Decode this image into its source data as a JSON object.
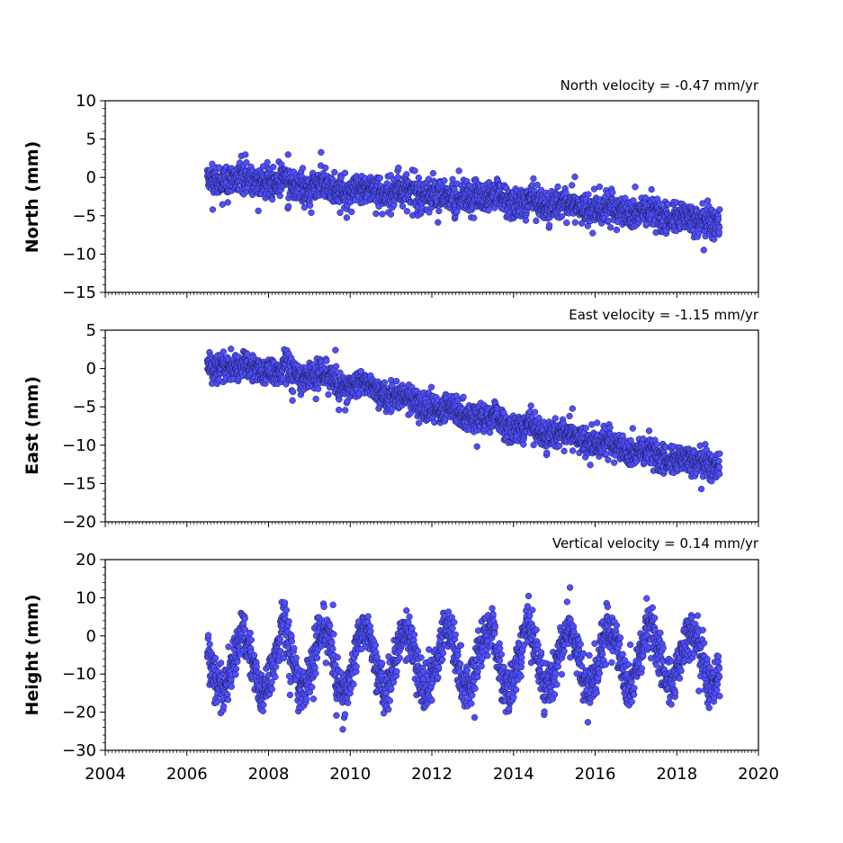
{
  "chart_data": [
    {
      "type": "scatter",
      "title": "North velocity = -0.47 mm/yr",
      "ylabel": "North (mm)",
      "xlim": [
        2004,
        2020
      ],
      "ylim": [
        -15,
        10
      ],
      "yticks": [
        10,
        5,
        0,
        -5,
        -10,
        -15
      ],
      "series": [
        {
          "start": 2006.5,
          "end": 2019.05,
          "trend": [
            [
              2006.5,
              0.0
            ],
            [
              2010.0,
              -1.6
            ],
            [
              2013.0,
              -2.6
            ],
            [
              2016.0,
              -4.0
            ],
            [
              2019.0,
              -5.8
            ]
          ],
          "scatter_sd": 1.3,
          "seasonal_amp": 0.3
        }
      ]
    },
    {
      "type": "scatter",
      "title": "East velocity = -1.15 mm/yr",
      "ylabel": "East (mm)",
      "xlim": [
        2004,
        2020
      ],
      "ylim": [
        -20,
        5
      ],
      "yticks": [
        5,
        0,
        -5,
        -10,
        -15,
        -20
      ],
      "series": [
        {
          "start": 2006.5,
          "end": 2019.05,
          "trend": [
            [
              2006.5,
              0.5
            ],
            [
              2008.0,
              0.0
            ],
            [
              2010.0,
              -2.0
            ],
            [
              2012.0,
              -5.0
            ],
            [
              2014.0,
              -7.5
            ],
            [
              2016.0,
              -9.5
            ],
            [
              2017.5,
              -11.5
            ],
            [
              2019.0,
              -12.5
            ]
          ],
          "scatter_sd": 1.2,
          "seasonal_amp": 0.4
        }
      ]
    },
    {
      "type": "scatter",
      "title": "Vertical velocity = 0.14 mm/yr",
      "ylabel": "Height (mm)",
      "xlim": [
        2004,
        2020
      ],
      "ylim": [
        -30,
        20
      ],
      "yticks": [
        20,
        10,
        0,
        -10,
        -20,
        -30
      ],
      "xticks": [
        2004,
        2006,
        2008,
        2010,
        2012,
        2014,
        2016,
        2018,
        2020
      ],
      "series": [
        {
          "start": 2006.5,
          "end": 2019.05,
          "trend": [
            [
              2006.5,
              -7.0
            ],
            [
              2019.0,
              -5.5
            ]
          ],
          "scatter_sd": 4.0,
          "seasonal_amp": 7.5
        }
      ]
    }
  ]
}
